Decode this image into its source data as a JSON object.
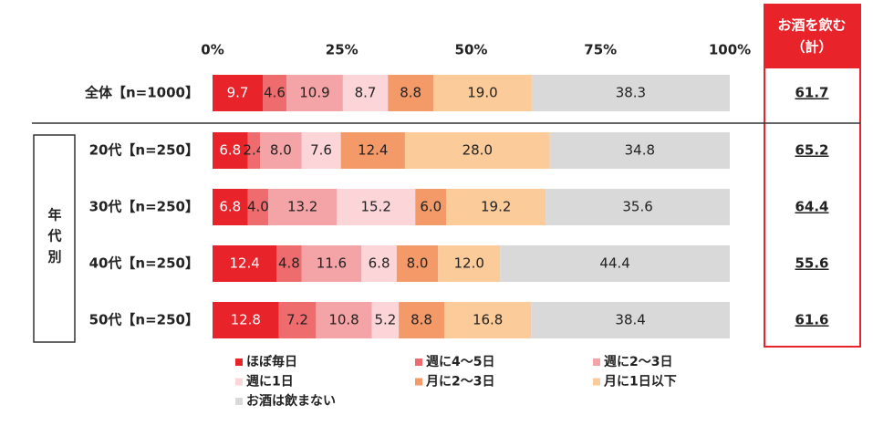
{
  "chart_data": {
    "type": "stacked_barh",
    "categories": [
      "全体【n=1000】",
      "20代【n=250】",
      "30代【n=250】",
      "40代【n=250】",
      "50代【n=250】"
    ],
    "group_label": "年代別",
    "xlim": [
      0,
      100
    ],
    "xticks": [
      {
        "value": 0,
        "label": "0%"
      },
      {
        "value": 25,
        "label": "25%"
      },
      {
        "value": 50,
        "label": "50%"
      },
      {
        "value": 75,
        "label": "75%"
      },
      {
        "value": 100,
        "label": "100%"
      }
    ],
    "series": [
      {
        "name": "ほぼ毎日",
        "color": "#e8242a",
        "values": [
          9.7,
          6.8,
          6.8,
          12.4,
          12.8
        ],
        "value_labels": [
          "9.7",
          "6.8",
          "6.8",
          "12.4",
          "12.8"
        ]
      },
      {
        "name": "週に4～5日",
        "color": "#ee6b6e",
        "values": [
          4.6,
          2.4,
          4.0,
          4.8,
          7.2
        ],
        "value_labels": [
          "4.6",
          "2.4",
          "4.0",
          "4.8",
          "7.2"
        ]
      },
      {
        "name": "週に2～3日",
        "color": "#f4a3a6",
        "values": [
          10.9,
          8.0,
          13.2,
          11.6,
          10.8
        ],
        "value_labels": [
          "10.9",
          "8.0",
          "13.2",
          "11.6",
          "10.8"
        ]
      },
      {
        "name": "週に1日",
        "color": "#fbd5d8",
        "values": [
          8.7,
          7.6,
          15.2,
          6.8,
          5.2
        ],
        "value_labels": [
          "8.7",
          "7.6",
          "15.2",
          "6.8",
          "5.2"
        ]
      },
      {
        "name": "月に2～3日",
        "color": "#f49a68",
        "values": [
          8.8,
          12.4,
          6.0,
          8.0,
          8.8
        ],
        "value_labels": [
          "8.8",
          "12.4",
          "6.0",
          "8.0",
          "8.8"
        ]
      },
      {
        "name": "月に1日以下",
        "color": "#fbcb9a",
        "values": [
          19.0,
          28.0,
          19.2,
          12.0,
          16.8
        ],
        "value_labels": [
          "19.0",
          "28.0",
          "19.2",
          "12.0",
          "16.8"
        ]
      },
      {
        "name": "お酒は飲まない",
        "color": "#d9d9d9",
        "values": [
          38.3,
          34.8,
          35.6,
          44.4,
          38.4
        ],
        "value_labels": [
          "38.3",
          "34.8",
          "35.6",
          "44.4",
          "38.4"
        ]
      }
    ],
    "total": {
      "title": [
        "お酒を飲む",
        "（計）"
      ],
      "values": [
        61.7,
        65.2,
        64.4,
        55.6,
        61.6
      ]
    }
  }
}
